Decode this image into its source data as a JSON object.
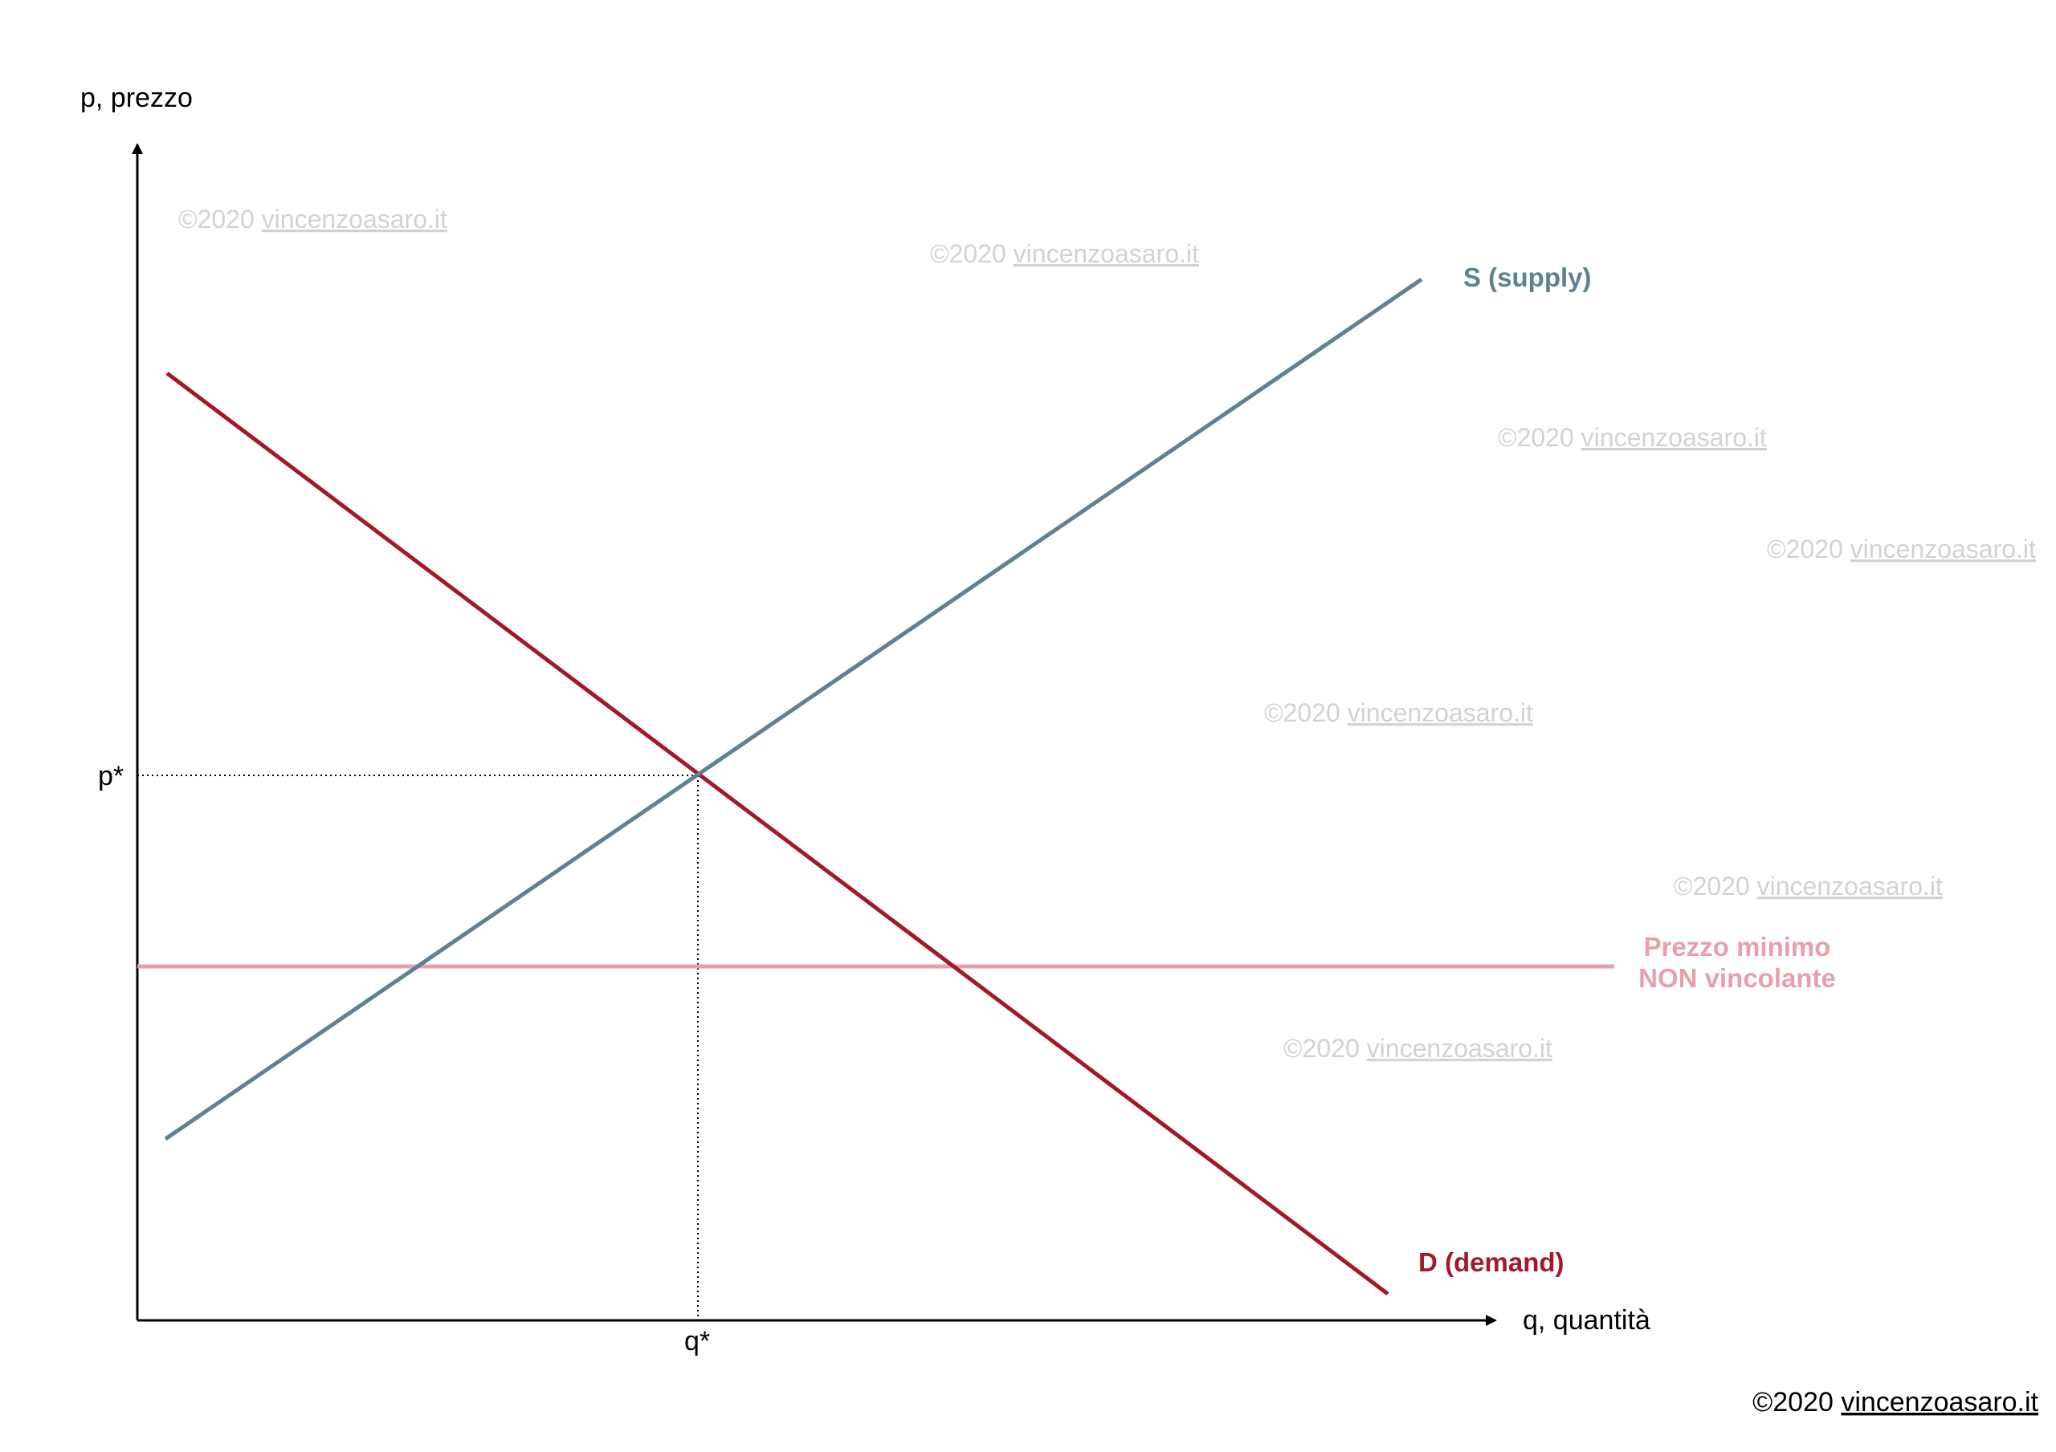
{
  "axes": {
    "y_label": "p, prezzo",
    "x_label": "q, quantità",
    "p_star": "p*",
    "q_star": "q*"
  },
  "curves": {
    "supply_label": "S (supply)",
    "demand_label": "D (demand)",
    "floor_label_line1": "Prezzo minimo",
    "floor_label_line2": "NON vincolante"
  },
  "colors": {
    "supply": "#5f8190",
    "demand": "#a3192a",
    "floor": "#e7a0ab",
    "watermark": "#d2d2d2"
  },
  "watermark": {
    "prefix": "©2020 ",
    "link": "vincenzoasaro.it"
  },
  "copyright": {
    "prefix": "©2020 ",
    "link": "vincenzoasaro.it"
  }
}
